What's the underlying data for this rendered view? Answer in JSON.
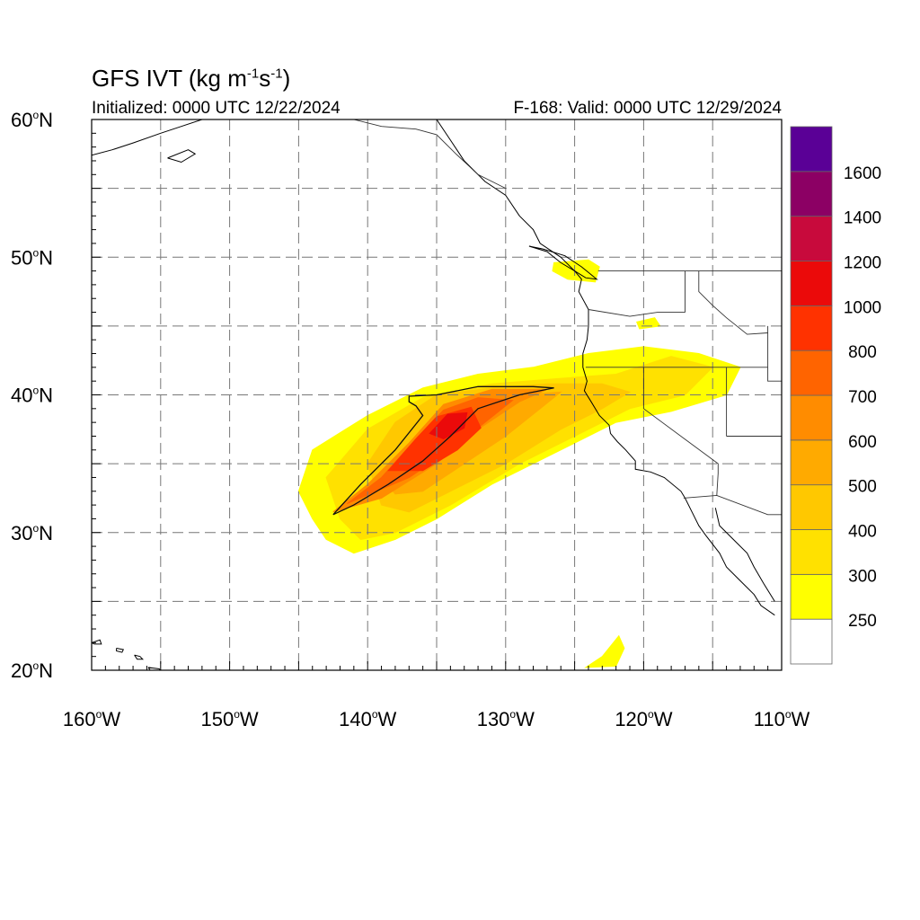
{
  "title": {
    "main": "GFS IVT (kg m",
    "exp1": "-1",
    "mid": "s",
    "exp2": "-1",
    "end": ")"
  },
  "subtitle_left": "Initialized: 0000 UTC 12/22/2024",
  "subtitle_right": "F-168: Valid: 0000 UTC 12/29/2024",
  "map": {
    "lon_range": [
      -160,
      -110
    ],
    "lat_range": [
      20,
      60
    ],
    "lat_labels": [
      {
        "lat": 60,
        "text": "60",
        "suffix": "N"
      },
      {
        "lat": 50,
        "text": "50",
        "suffix": "N"
      },
      {
        "lat": 40,
        "text": "40",
        "suffix": "N"
      },
      {
        "lat": 30,
        "text": "30",
        "suffix": "N"
      },
      {
        "lat": 20,
        "text": "20",
        "suffix": "N"
      }
    ],
    "lon_labels": [
      {
        "lon": -160,
        "text": "160",
        "suffix": "W"
      },
      {
        "lon": -150,
        "text": "150",
        "suffix": "W"
      },
      {
        "lon": -140,
        "text": "140",
        "suffix": "W"
      },
      {
        "lon": -130,
        "text": "130",
        "suffix": "W"
      },
      {
        "lon": -120,
        "text": "120",
        "suffix": "W"
      },
      {
        "lon": -110,
        "text": "110",
        "suffix": "W"
      }
    ],
    "grid": "dashed every 5 degrees"
  },
  "colorbar": {
    "levels": [
      "250",
      "300",
      "400",
      "500",
      "600",
      "700",
      "800",
      "1000",
      "1200",
      "1400",
      "1600"
    ],
    "colors": [
      "#ffffff",
      "#ffff00",
      "#ffe100",
      "#ffc800",
      "#ffaa00",
      "#ff8c00",
      "#ff6400",
      "#ff3200",
      "#eb0a0a",
      "#c80a3c",
      "#8c0064",
      "#5a0096"
    ],
    "placement": "right"
  },
  "ivt_field": {
    "contour_value": 700,
    "blobs": [
      {
        "name": "main-plume",
        "level": 1,
        "pts": [
          [
            -145,
            33
          ],
          [
            -144,
            36
          ],
          [
            -140,
            38.5
          ],
          [
            -136,
            40.5
          ],
          [
            -132,
            41.5
          ],
          [
            -128,
            42
          ],
          [
            -124,
            43
          ],
          [
            -120,
            43.5
          ],
          [
            -116,
            43
          ],
          [
            -113,
            42
          ],
          [
            -114,
            40
          ],
          [
            -118,
            38.8
          ],
          [
            -122,
            38
          ],
          [
            -126,
            36
          ],
          [
            -131,
            33.5
          ],
          [
            -135,
            31
          ],
          [
            -138,
            29.5
          ],
          [
            -141,
            28.5
          ],
          [
            -143,
            29.5
          ],
          [
            -144,
            31
          ]
        ]
      },
      {
        "name": "wa-strip",
        "level": 1,
        "pts": [
          [
            -126.5,
            49.6
          ],
          [
            -124,
            49.8
          ],
          [
            -123.2,
            49.3
          ],
          [
            -123.5,
            48.2
          ],
          [
            -125.5,
            48.4
          ],
          [
            -126.6,
            49
          ]
        ]
      },
      {
        "name": "oregon-blob",
        "level": 1,
        "pts": [
          [
            -120.5,
            45.3
          ],
          [
            -119.2,
            45.6
          ],
          [
            -118.8,
            45
          ],
          [
            -120.3,
            44.8
          ]
        ]
      },
      {
        "name": "south-patch",
        "level": 1,
        "pts": [
          [
            -124.2,
            20.2
          ],
          [
            -123,
            21
          ],
          [
            -121.8,
            22.5
          ],
          [
            -121.4,
            21.6
          ],
          [
            -122,
            20.3
          ]
        ]
      },
      {
        "name": "plume-300",
        "level": 2,
        "pts": [
          [
            -143,
            34
          ],
          [
            -140,
            37.5
          ],
          [
            -136,
            39.8
          ],
          [
            -131,
            40.8
          ],
          [
            -126,
            41.2
          ],
          [
            -122,
            41.5
          ],
          [
            -118,
            42.8
          ],
          [
            -115,
            42
          ],
          [
            -117,
            40
          ],
          [
            -121,
            39
          ],
          [
            -125,
            37
          ],
          [
            -129,
            35
          ],
          [
            -134,
            32
          ],
          [
            -138,
            30
          ],
          [
            -140.5,
            29.5
          ],
          [
            -142,
            31
          ]
        ]
      },
      {
        "name": "plume-400",
        "level": 3,
        "pts": [
          [
            -140,
            35
          ],
          [
            -138,
            38
          ],
          [
            -135,
            40
          ],
          [
            -131,
            40.5
          ],
          [
            -127,
            40.8
          ],
          [
            -123,
            40.8
          ],
          [
            -121,
            40.2
          ],
          [
            -123,
            39
          ],
          [
            -126,
            37.5
          ],
          [
            -130,
            35
          ],
          [
            -134,
            33
          ],
          [
            -137,
            31.5
          ],
          [
            -139,
            32
          ]
        ]
      },
      {
        "name": "plume-500",
        "level": 4,
        "pts": [
          [
            -139,
            34
          ],
          [
            -136,
            37.5
          ],
          [
            -133,
            39.5
          ],
          [
            -129,
            40
          ],
          [
            -126,
            40.2
          ],
          [
            -127.5,
            39
          ],
          [
            -130,
            37
          ],
          [
            -133,
            35
          ],
          [
            -136,
            33
          ],
          [
            -138,
            32.8
          ]
        ]
      },
      {
        "name": "plume-600",
        "level": 5,
        "pts": [
          [
            -142.5,
            31.5
          ],
          [
            -140,
            33.5
          ],
          [
            -137,
            36.5
          ],
          [
            -134.5,
            39.3
          ],
          [
            -131,
            40.4
          ],
          [
            -127,
            40.4
          ],
          [
            -129,
            39.5
          ],
          [
            -132,
            37.5
          ],
          [
            -135,
            35
          ],
          [
            -139,
            32.5
          ]
        ]
      },
      {
        "name": "plume-700",
        "level": 6,
        "pts": [
          [
            -141.5,
            32.1
          ],
          [
            -139,
            34
          ],
          [
            -136.5,
            36.8
          ],
          [
            -134.5,
            38.9
          ],
          [
            -132,
            39.8
          ],
          [
            -129.5,
            39.6
          ],
          [
            -131.5,
            38
          ],
          [
            -134,
            36
          ],
          [
            -137,
            34
          ]
        ]
      },
      {
        "name": "plume-800",
        "level": 7,
        "pts": [
          [
            -138.5,
            34.5
          ],
          [
            -136.5,
            36.8
          ],
          [
            -135,
            38.4
          ],
          [
            -132.5,
            39.1
          ],
          [
            -131.8,
            37.6
          ],
          [
            -133.5,
            36
          ],
          [
            -136,
            34.5
          ]
        ]
      },
      {
        "name": "plume-1000",
        "level": 8,
        "pts": [
          [
            -135.5,
            37.2
          ],
          [
            -134.2,
            38.6
          ],
          [
            -132.8,
            38.7
          ],
          [
            -133,
            37.6
          ],
          [
            -134.5,
            36.8
          ]
        ]
      }
    ],
    "contour_700": [
      [
        -142.5,
        31.3
      ],
      [
        -140.5,
        33.5
      ],
      [
        -138,
        36
      ],
      [
        -136,
        38.5
      ],
      [
        -136.5,
        39.2
      ],
      [
        -137,
        39.5
      ],
      [
        -137,
        39.9
      ],
      [
        -135,
        40
      ],
      [
        -132,
        40.6
      ],
      [
        -128,
        40.6
      ],
      [
        -126.5,
        40.5
      ],
      [
        -129,
        40
      ],
      [
        -132,
        39
      ],
      [
        -134,
        37
      ],
      [
        -136,
        35.2
      ],
      [
        -138.5,
        33.5
      ],
      [
        -141,
        32
      ],
      [
        -142.5,
        31.3
      ]
    ]
  },
  "coastlines": [
    {
      "name": "na-coast",
      "pts": [
        [
          -135,
          60
        ],
        [
          -134,
          58.5
        ],
        [
          -133,
          57
        ],
        [
          -131.5,
          55.5
        ],
        [
          -130,
          54.5
        ],
        [
          -129,
          53
        ],
        [
          -128,
          52
        ],
        [
          -127.5,
          51
        ],
        [
          -126,
          50
        ],
        [
          -125,
          49
        ],
        [
          -124.5,
          48.4
        ],
        [
          -124.7,
          47.5
        ],
        [
          -124,
          46.2
        ],
        [
          -124,
          45
        ],
        [
          -124.1,
          44
        ],
        [
          -124.4,
          43
        ],
        [
          -124.4,
          42
        ],
        [
          -124.1,
          41
        ],
        [
          -124.3,
          40.3
        ],
        [
          -123.8,
          39.5
        ],
        [
          -123.2,
          38.5
        ],
        [
          -122.5,
          37.8
        ],
        [
          -122.4,
          37.2
        ],
        [
          -121.9,
          36.6
        ],
        [
          -121.3,
          36
        ],
        [
          -120.6,
          35.2
        ],
        [
          -120.6,
          34.6
        ],
        [
          -119.5,
          34.4
        ],
        [
          -118.5,
          34
        ],
        [
          -117.3,
          33
        ],
        [
          -117,
          32.5
        ],
        [
          -116.5,
          31.5
        ],
        [
          -116,
          30.5
        ],
        [
          -115.5,
          29.8
        ],
        [
          -114.5,
          28.5
        ],
        [
          -114,
          27.5
        ],
        [
          -113,
          26.5
        ],
        [
          -112,
          25.5
        ],
        [
          -111.5,
          24.7
        ],
        [
          -110.5,
          24
        ]
      ]
    },
    {
      "name": "baja-inner",
      "pts": [
        [
          -114.8,
          31.8
        ],
        [
          -114.5,
          30.5
        ],
        [
          -113.5,
          29.5
        ],
        [
          -112.5,
          28.5
        ],
        [
          -112,
          27.5
        ],
        [
          -111.3,
          26.3
        ],
        [
          -110.5,
          25
        ]
      ]
    },
    {
      "name": "van-island",
      "pts": [
        [
          -128.3,
          50.8
        ],
        [
          -127,
          50.4
        ],
        [
          -126,
          49.6
        ],
        [
          -125,
          49
        ],
        [
          -124.2,
          48.5
        ],
        [
          -123.4,
          48.4
        ],
        [
          -124.5,
          49.3
        ],
        [
          -125.7,
          50.1
        ],
        [
          -127.3,
          50.6
        ],
        [
          -128.3,
          50.8
        ]
      ]
    },
    {
      "name": "alaska",
      "pts": [
        [
          -160,
          57.4
        ],
        [
          -158.5,
          57.8
        ],
        [
          -157,
          58.3
        ],
        [
          -155,
          59
        ],
        [
          -153.5,
          59.5
        ],
        [
          -152,
          60
        ]
      ]
    },
    {
      "name": "kodiak",
      "pts": [
        [
          -154.5,
          57.2
        ],
        [
          -153,
          57.8
        ],
        [
          -152.5,
          57.5
        ],
        [
          -153.5,
          56.9
        ],
        [
          -154.5,
          57.2
        ]
      ]
    },
    {
      "name": "hawaii-1",
      "pts": [
        [
          -160,
          22
        ],
        [
          -159.4,
          22.2
        ],
        [
          -159.3,
          21.9
        ],
        [
          -159.8,
          21.9
        ],
        [
          -160,
          22
        ]
      ]
    },
    {
      "name": "hawaii-2",
      "pts": [
        [
          -158.2,
          21.6
        ],
        [
          -157.7,
          21.5
        ],
        [
          -157.8,
          21.3
        ],
        [
          -158.2,
          21.4
        ],
        [
          -158.2,
          21.6
        ]
      ]
    },
    {
      "name": "hawaii-3",
      "pts": [
        [
          -156.9,
          21.1
        ],
        [
          -156.5,
          21
        ],
        [
          -156.3,
          20.8
        ],
        [
          -156.7,
          20.8
        ],
        [
          -156.9,
          21.1
        ]
      ]
    },
    {
      "name": "hawaii-4",
      "pts": [
        [
          -155.9,
          20.2
        ],
        [
          -155.1,
          20.1
        ],
        [
          -154.9,
          19.8
        ],
        [
          -155.5,
          19.6
        ],
        [
          -155.9,
          20.2
        ]
      ]
    }
  ],
  "borders": [
    {
      "name": "us-canada",
      "pts": [
        [
          -123.3,
          49
        ],
        [
          -110,
          49
        ]
      ]
    },
    {
      "name": "alaska-bc",
      "pts": [
        [
          -141,
          60
        ],
        [
          -139,
          59.5
        ],
        [
          -136.5,
          59.3
        ],
        [
          -135,
          58.9
        ],
        [
          -133.6,
          57.5
        ],
        [
          -132,
          56
        ],
        [
          -130,
          55
        ]
      ]
    },
    {
      "name": "wa-or",
      "pts": [
        [
          -124,
          46.2
        ],
        [
          -121,
          45.7
        ],
        [
          -119,
          46
        ],
        [
          -117,
          46
        ]
      ]
    },
    {
      "name": "or-ca",
      "pts": [
        [
          -124.2,
          42
        ],
        [
          -120,
          42
        ]
      ]
    },
    {
      "name": "or-nv-id",
      "pts": [
        [
          -120,
          42
        ],
        [
          -111,
          42
        ]
      ]
    },
    {
      "name": "ca-nv",
      "pts": [
        [
          -120,
          42
        ],
        [
          -120,
          39
        ],
        [
          -114.6,
          35
        ],
        [
          -114.6,
          34.3
        ],
        [
          -114.7,
          32.7
        ]
      ]
    },
    {
      "name": "us-mex",
      "pts": [
        [
          -117.1,
          32.5
        ],
        [
          -114.7,
          32.7
        ],
        [
          -111,
          31.3
        ],
        [
          -110,
          31.3
        ]
      ]
    },
    {
      "name": "id-wa",
      "pts": [
        [
          -117,
          49
        ],
        [
          -117,
          46
        ]
      ]
    },
    {
      "name": "id-mt",
      "pts": [
        [
          -116,
          49
        ],
        [
          -116,
          47.5
        ],
        [
          -115,
          46.5
        ],
        [
          -114,
          45.6
        ],
        [
          -112.5,
          44.4
        ],
        [
          -111,
          44.5
        ]
      ]
    },
    {
      "name": "nv-ut",
      "pts": [
        [
          -114,
          42
        ],
        [
          -114,
          37
        ]
      ]
    },
    {
      "name": "az-ut",
      "pts": [
        [
          -114,
          37
        ],
        [
          -110,
          37
        ]
      ]
    },
    {
      "name": "wy",
      "pts": [
        [
          -111,
          45
        ],
        [
          -111,
          41
        ],
        [
          -110,
          41
        ]
      ]
    }
  ]
}
